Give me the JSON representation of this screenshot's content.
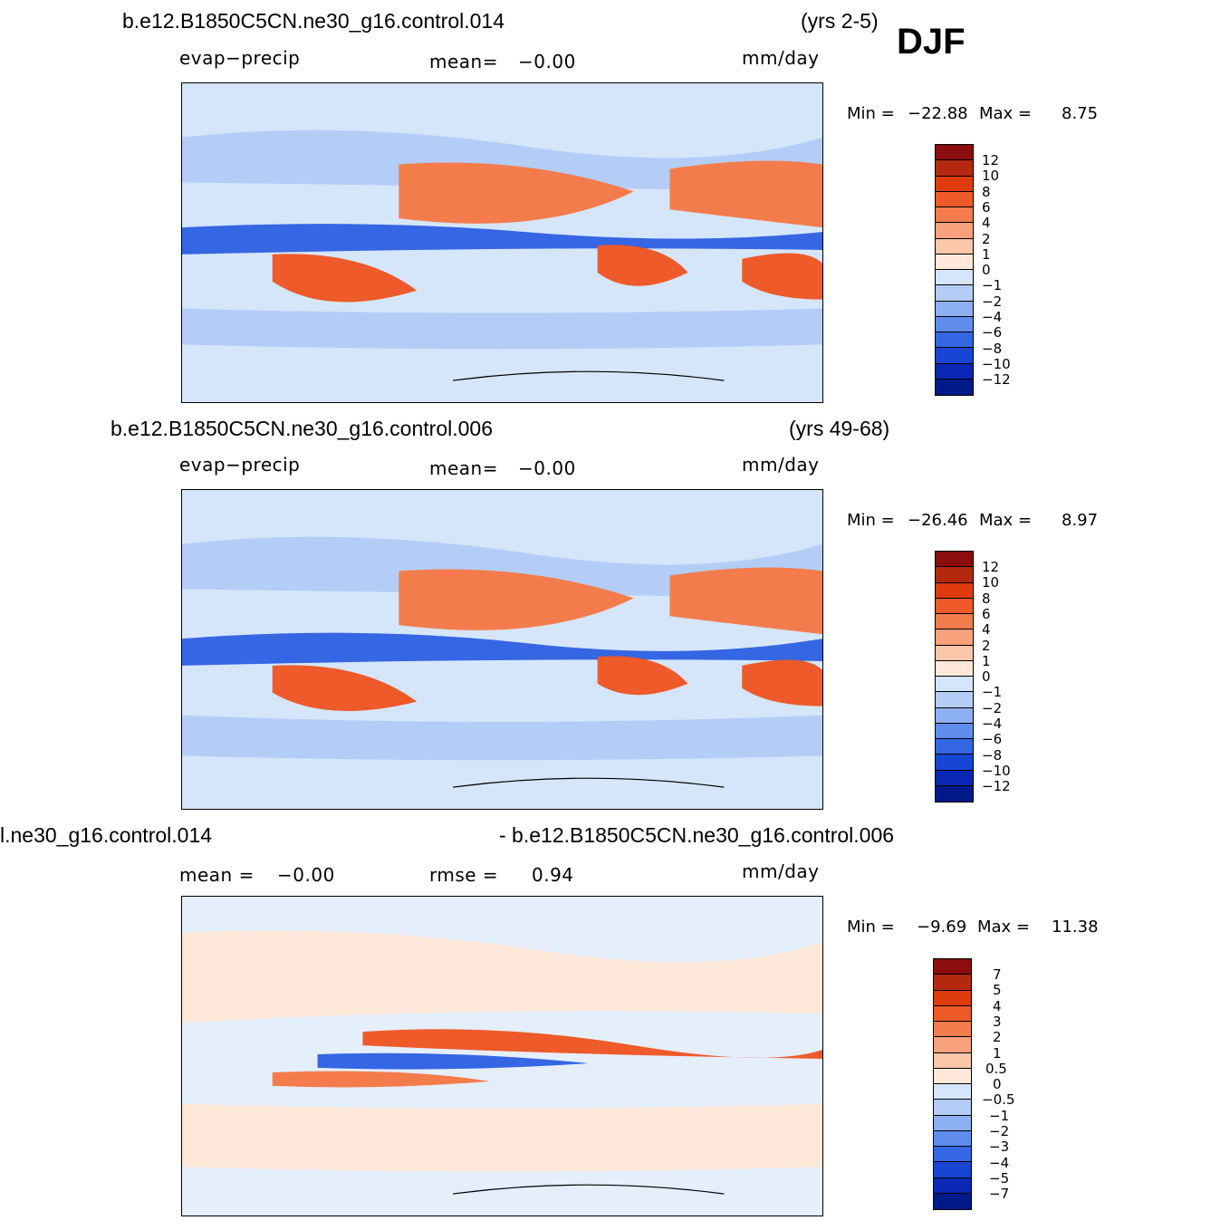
{
  "season": "DJF",
  "panels": [
    {
      "case": "b.e12.B1850C5CN.ne30_g16.control.014",
      "years": "(yrs 2-5)",
      "variable": "evap−precip",
      "mean_label": "mean=",
      "mean_value": "−0.00",
      "units": "mm/day",
      "min_label": "Min  =",
      "min_value": "−22.88",
      "max_label": "Max  =",
      "max_value": "8.75",
      "colorbar_labels": [
        "12",
        "10",
        "8",
        "6",
        "4",
        "2",
        "1",
        "0",
        "−1",
        "−2",
        "−4",
        "−6",
        "−8",
        "−10",
        "−12"
      ]
    },
    {
      "case": "b.e12.B1850C5CN.ne30_g16.control.006",
      "years": "(yrs 49-68)",
      "variable": "evap−precip",
      "mean_label": "mean=",
      "mean_value": "−0.00",
      "units": "mm/day",
      "min_label": "Min  =",
      "min_value": "−26.46",
      "max_label": "Max  =",
      "max_value": "8.97",
      "colorbar_labels": [
        "12",
        "10",
        "8",
        "6",
        "4",
        "2",
        "1",
        "0",
        "−1",
        "−2",
        "−4",
        "−6",
        "−8",
        "−10",
        "−12"
      ]
    },
    {
      "case_left": "l.ne30_g16.control.014",
      "case_right": "- b.e12.B1850C5CN.ne30_g16.control.006",
      "mean_label": "mean  =",
      "mean_value": "−0.00",
      "rmse_label": "rmse  =",
      "rmse_value": "0.94",
      "units": "mm/day",
      "min_label": "Min  =",
      "min_value": "−9.69",
      "max_label": "Max  =",
      "max_value": "11.38",
      "colorbar_labels": [
        "7",
        "5",
        "4",
        "3",
        "2",
        "1",
        "0.5",
        "0",
        "−0.5",
        "−1",
        "−2",
        "−3",
        "−4",
        "−5",
        "−7"
      ]
    }
  ],
  "colors": {
    "scale": [
      "#8b0d0d",
      "#b52810",
      "#de3c0e",
      "#ee5a2a",
      "#f47c4c",
      "#f9a07c",
      "#fcc6a9",
      "#fde8da",
      "#d5e6fa",
      "#b4cdf6",
      "#8cb0f2",
      "#5f8ced",
      "#3566e3",
      "#1745d4",
      "#0a28b3",
      "#001a8a"
    ],
    "coast": "#000000"
  }
}
